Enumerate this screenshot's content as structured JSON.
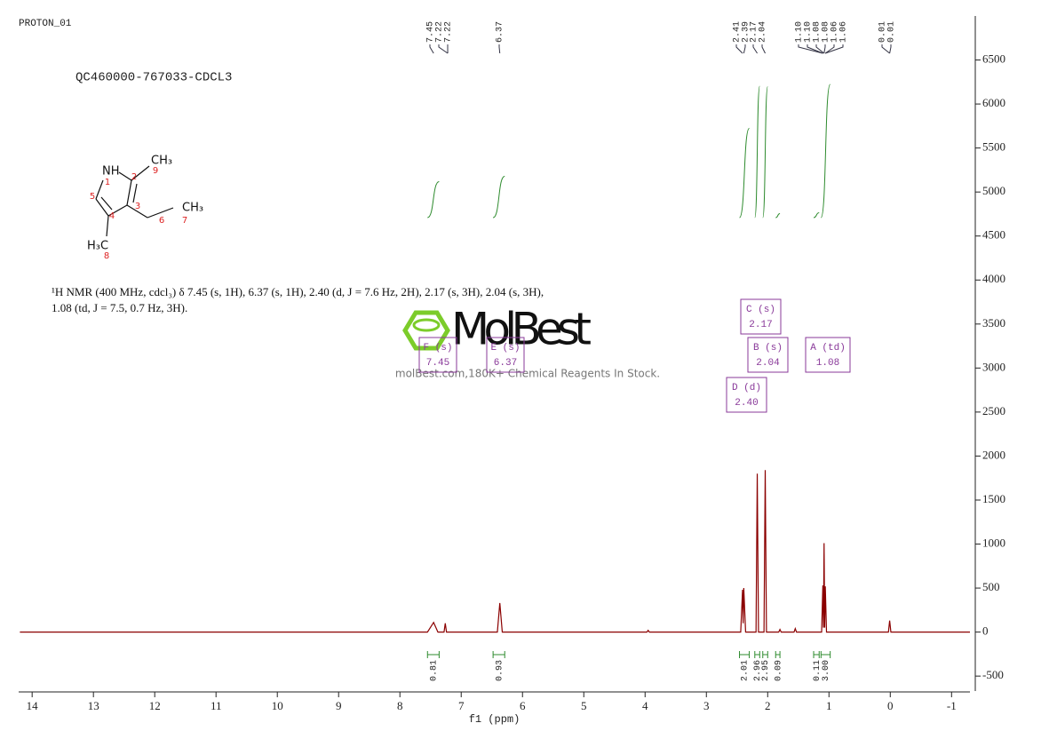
{
  "title": "PROTON_01",
  "sample": "QC460000-767033-CDCL3",
  "molecule": {
    "labels": [
      "NH",
      "CH₃",
      "CH₃",
      "H₃C"
    ],
    "locants": [
      "1",
      "2",
      "3",
      "4",
      "5",
      "6",
      "7",
      "8",
      "9"
    ]
  },
  "description": "¹H NMR (400 MHz, cdcl₃) δ 7.45 (s, 1H), 6.37 (s, 1H), 2.40 (d, J = 7.6 Hz, 2H), 2.17 (s, 3H), 2.04 (s, 3H), 1.08 (td, J = 7.5, 0.7 Hz, 3H).",
  "watermark": {
    "logo": "MolBest",
    "tagline": "molBest.com,180K+ Chemical Reagents In Stock."
  },
  "chart_data": {
    "type": "line",
    "x_label": "f1 (ppm)",
    "xlim": [
      14.22,
      -1.3
    ],
    "xticks": [
      14,
      13,
      12,
      11,
      10,
      9,
      8,
      7,
      6,
      5,
      4,
      3,
      2,
      1,
      0,
      -1
    ],
    "ylim": [
      -670,
      7000
    ],
    "yticks": [
      -500,
      0,
      500,
      1000,
      1500,
      2000,
      2500,
      3000,
      3500,
      4000,
      4500,
      5000,
      5500,
      6000,
      6500
    ],
    "color": "#8b0000",
    "x": [
      14.2,
      7.55,
      7.45,
      7.38,
      7.28,
      7.26,
      7.24,
      6.41,
      6.37,
      6.33,
      3.97,
      3.95,
      3.93,
      2.44,
      2.41,
      2.4,
      2.39,
      2.36,
      2.19,
      2.17,
      2.15,
      2.06,
      2.04,
      2.02,
      1.82,
      1.8,
      1.78,
      1.57,
      1.55,
      1.53,
      1.12,
      1.1,
      1.09,
      1.08,
      1.07,
      1.06,
      1.04,
      0.03,
      0.01,
      -0.01,
      -1.3
    ],
    "values": [
      0,
      0,
      110,
      0,
      0,
      100,
      0,
      0,
      330,
      0,
      0,
      20,
      0,
      0,
      480,
      100,
      500,
      0,
      0,
      1800,
      0,
      0,
      1840,
      0,
      0,
      30,
      0,
      0,
      40,
      0,
      0,
      530,
      50,
      1010,
      50,
      520,
      0,
      0,
      130,
      0,
      0
    ],
    "peaks": [
      7.45,
      7.22,
      7.22,
      6.37,
      2.41,
      2.39,
      2.17,
      2.04,
      1.1,
      1.1,
      1.08,
      1.08,
      1.06,
      1.06,
      0.01,
      0.01
    ],
    "peak_labels": [
      "7.45",
      "7.22",
      "7.22",
      "6.37",
      "2.41",
      "2.39",
      "2.17",
      "2.04",
      "1.10",
      "1.10",
      "1.08",
      "1.08",
      "1.06",
      "1.06",
      "0.01",
      "0.01"
    ],
    "integrals": {
      "ranges": [
        [
          7.55,
          7.36
        ],
        [
          6.48,
          6.29
        ],
        [
          2.46,
          2.3
        ],
        [
          2.21,
          2.13
        ],
        [
          2.08,
          2.0
        ],
        [
          1.87,
          1.8
        ],
        [
          1.25,
          1.16
        ],
        [
          1.13,
          0.98
        ]
      ],
      "values": [
        0.81,
        0.93,
        2.01,
        2.96,
        2.95,
        0.09,
        0.11,
        3
      ],
      "value_labels": [
        "0.81",
        "0.93",
        "2.01",
        "2.96",
        "2.95",
        "0.09",
        "0.11",
        "3.00"
      ]
    },
    "multiplets": [
      {
        "name": "F (s)",
        "shift": "7.45"
      },
      {
        "name": "E (s)",
        "shift": "6.37"
      },
      {
        "name": "C (s)",
        "shift": "2.17"
      },
      {
        "name": "B (s)",
        "shift": "2.04"
      },
      {
        "name": "A (td)",
        "shift": "1.08"
      },
      {
        "name": "D (d)",
        "shift": "2.40"
      }
    ]
  }
}
